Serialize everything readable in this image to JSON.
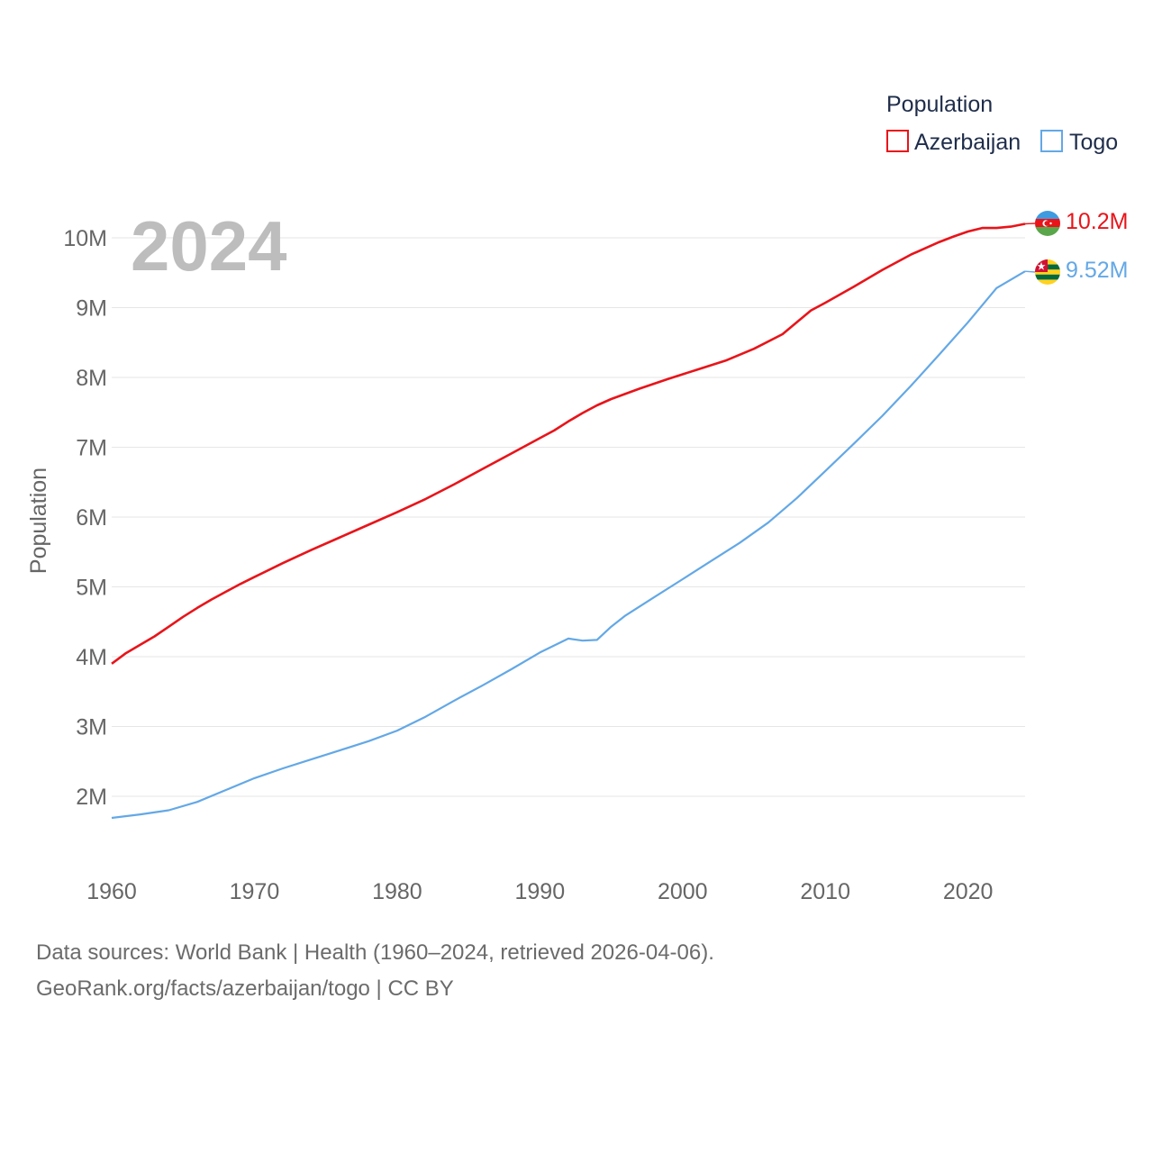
{
  "chart_data": {
    "type": "line",
    "title": "2024",
    "ylabel": "Population",
    "xlabel": "",
    "legend": {
      "title": "Population",
      "position": "top-right"
    },
    "xlim": [
      1960,
      2024
    ],
    "ylim": [
      1000000,
      10700000
    ],
    "x_ticks": [
      {
        "value": 1960,
        "label": "1960"
      },
      {
        "value": 1970,
        "label": "1970"
      },
      {
        "value": 1980,
        "label": "1980"
      },
      {
        "value": 1990,
        "label": "1990"
      },
      {
        "value": 2000,
        "label": "2000"
      },
      {
        "value": 2010,
        "label": "2010"
      },
      {
        "value": 2020,
        "label": "2020"
      }
    ],
    "y_ticks": [
      {
        "value": 2000000,
        "label": "2M"
      },
      {
        "value": 3000000,
        "label": "3M"
      },
      {
        "value": 4000000,
        "label": "4M"
      },
      {
        "value": 5000000,
        "label": "5M"
      },
      {
        "value": 6000000,
        "label": "6M"
      },
      {
        "value": 7000000,
        "label": "7M"
      },
      {
        "value": 8000000,
        "label": "8M"
      },
      {
        "value": 9000000,
        "label": "9M"
      },
      {
        "value": 10000000,
        "label": "10M"
      }
    ],
    "grid": true,
    "series": [
      {
        "name": "Azerbaijan",
        "color": "#e8141a",
        "end_label": "10.2M",
        "flag": "azerbaijan-flag-icon",
        "points": [
          [
            1960,
            3900000
          ],
          [
            1961,
            4050000
          ],
          [
            1962,
            4170000
          ],
          [
            1963,
            4290000
          ],
          [
            1964,
            4430000
          ],
          [
            1965,
            4570000
          ],
          [
            1966,
            4700000
          ],
          [
            1967,
            4820000
          ],
          [
            1968,
            4930000
          ],
          [
            1969,
            5040000
          ],
          [
            1970,
            5140000
          ],
          [
            1972,
            5340000
          ],
          [
            1974,
            5530000
          ],
          [
            1976,
            5710000
          ],
          [
            1978,
            5890000
          ],
          [
            1980,
            6070000
          ],
          [
            1982,
            6260000
          ],
          [
            1984,
            6470000
          ],
          [
            1986,
            6690000
          ],
          [
            1988,
            6910000
          ],
          [
            1990,
            7130000
          ],
          [
            1991,
            7240000
          ],
          [
            1992,
            7370000
          ],
          [
            1993,
            7490000
          ],
          [
            1994,
            7600000
          ],
          [
            1995,
            7690000
          ],
          [
            1997,
            7840000
          ],
          [
            1999,
            7980000
          ],
          [
            2001,
            8110000
          ],
          [
            2003,
            8240000
          ],
          [
            2005,
            8410000
          ],
          [
            2007,
            8620000
          ],
          [
            2009,
            8960000
          ],
          [
            2010,
            9070000
          ],
          [
            2012,
            9300000
          ],
          [
            2014,
            9540000
          ],
          [
            2016,
            9760000
          ],
          [
            2018,
            9940000
          ],
          [
            2019,
            10020000
          ],
          [
            2020,
            10090000
          ],
          [
            2021,
            10140000
          ],
          [
            2022,
            10140000
          ],
          [
            2023,
            10160000
          ],
          [
            2024,
            10200000
          ]
        ]
      },
      {
        "name": "Togo",
        "color": "#63a8e6",
        "end_label": "9.52M",
        "flag": "togo-flag-icon",
        "points": [
          [
            1960,
            1690000
          ],
          [
            1962,
            1740000
          ],
          [
            1964,
            1800000
          ],
          [
            1966,
            1920000
          ],
          [
            1968,
            2090000
          ],
          [
            1970,
            2260000
          ],
          [
            1972,
            2400000
          ],
          [
            1974,
            2530000
          ],
          [
            1976,
            2660000
          ],
          [
            1978,
            2790000
          ],
          [
            1980,
            2940000
          ],
          [
            1982,
            3140000
          ],
          [
            1984,
            3370000
          ],
          [
            1986,
            3590000
          ],
          [
            1988,
            3820000
          ],
          [
            1990,
            4060000
          ],
          [
            1992,
            4260000
          ],
          [
            1993,
            4230000
          ],
          [
            1994,
            4240000
          ],
          [
            1995,
            4430000
          ],
          [
            1996,
            4590000
          ],
          [
            1998,
            4850000
          ],
          [
            2000,
            5110000
          ],
          [
            2002,
            5370000
          ],
          [
            2004,
            5630000
          ],
          [
            2006,
            5920000
          ],
          [
            2008,
            6270000
          ],
          [
            2010,
            6660000
          ],
          [
            2012,
            7050000
          ],
          [
            2014,
            7450000
          ],
          [
            2016,
            7880000
          ],
          [
            2018,
            8330000
          ],
          [
            2020,
            8790000
          ],
          [
            2022,
            9280000
          ],
          [
            2024,
            9520000
          ]
        ]
      }
    ]
  },
  "footer": {
    "line1": "Data sources: World Bank | Health (1960–2024, retrieved 2026-04-06).",
    "line2": "GeoRank.org/facts/azerbaijan/togo | CC BY"
  }
}
